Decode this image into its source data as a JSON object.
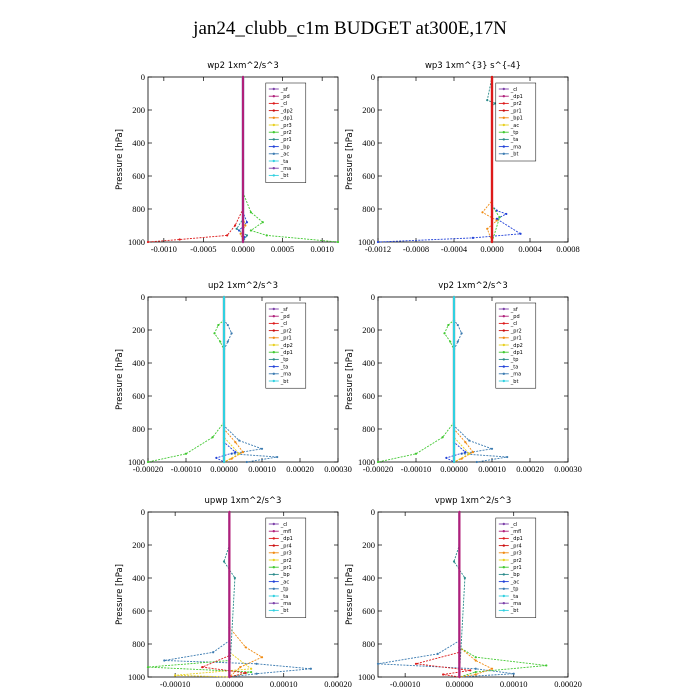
{
  "figure": {
    "title": "jan24_clubb_c1m  BUDGET at300E,17N"
  },
  "colors": {
    "purple": "#7b3fa8",
    "magenta": "#b0207a",
    "red": "#dd1a1a",
    "orange": "#f08a10",
    "yellow": "#e8d020",
    "green": "#40c830",
    "teal": "#2a8a8a",
    "blue": "#2040d8",
    "steel": "#3a7ab0",
    "cyan": "#30d0e0",
    "darkred": "#cc1010"
  },
  "chart_data": [
    {
      "type": "line",
      "title": "wp2   1xm^2/s^3",
      "ylabel": "Pressure [hPa]",
      "xlim": [
        -0.0012,
        0.0012
      ],
      "ylim": [
        1000,
        0
      ],
      "xticks": [
        -0.001,
        -0.0005,
        0,
        0.0005,
        0.001
      ],
      "xtick_labels": [
        "-0.0010",
        "-0.0005",
        "0.0000",
        "0.0005",
        "0.0010"
      ],
      "yticks": [
        0,
        200,
        400,
        600,
        800,
        1000
      ],
      "ytick_labels": [
        "0",
        "200",
        "400",
        "600",
        "800",
        "1000"
      ],
      "legend": [
        "_sf",
        "_pd",
        "_cl",
        "_dp2",
        "_dp1",
        "_pr3",
        "_pr2",
        "_pr1",
        "_bp",
        "_ac",
        "_ta",
        "_ma",
        "_bt"
      ],
      "series": [
        {
          "name": "_sf",
          "color": "purple",
          "x": [
            0,
            0,
            0
          ],
          "y": [
            0,
            800,
            1000
          ]
        },
        {
          "name": "_pr1",
          "color": "green",
          "x": [
            0,
            0,
            0.0001,
            0.00025,
            0.0001,
            0.0003,
            0.0012
          ],
          "y": [
            0,
            700,
            820,
            880,
            930,
            960,
            1000
          ]
        },
        {
          "name": "_dp1",
          "color": "red",
          "x": [
            0,
            0,
            -0.0001,
            -0.0002,
            -0.0008,
            -0.0012
          ],
          "y": [
            0,
            800,
            900,
            960,
            985,
            1000
          ]
        },
        {
          "name": "_ta",
          "color": "blue",
          "x": [
            0,
            0,
            5e-05,
            -5e-05,
            2e-05,
            0
          ],
          "y": [
            0,
            820,
            880,
            930,
            970,
            1000
          ]
        },
        {
          "name": "_ac",
          "color": "teal",
          "x": [
            0,
            0,
            -8e-05,
            5e-05,
            0
          ],
          "y": [
            0,
            860,
            920,
            960,
            1000
          ]
        },
        {
          "name": "_pr2",
          "color": "orange",
          "x": [
            0,
            0,
            3e-05,
            -3e-05,
            0
          ],
          "y": [
            0,
            850,
            900,
            950,
            1000
          ]
        },
        {
          "name": "_bt",
          "color": "cyan",
          "x": [
            0,
            0,
            0
          ],
          "y": [
            0,
            500,
            1000
          ]
        },
        {
          "name": "_cl",
          "color": "magenta",
          "x": [
            0,
            0,
            0
          ],
          "y": [
            0,
            500,
            1000
          ]
        }
      ]
    },
    {
      "type": "line",
      "title": "wp3   1xm^{3} s^{-4}",
      "ylabel": "Pressure [hPa]",
      "xlim": [
        -0.0012,
        0.0008
      ],
      "ylim": [
        1000,
        0
      ],
      "xticks": [
        -0.0012,
        -0.0008,
        -0.0004,
        0,
        0.0004,
        0.0008
      ],
      "xtick_labels": [
        "-0.0012",
        "-0.0008",
        "-0.0004",
        "0.0000",
        "0.0004",
        "0.0008"
      ],
      "yticks": [
        0,
        200,
        400,
        600,
        800,
        1000
      ],
      "ytick_labels": [
        "0",
        "200",
        "400",
        "600",
        "800",
        "1000"
      ],
      "legend": [
        "_cl",
        "_dp1",
        "_pr2",
        "_pr1",
        "_bp1",
        "_ac",
        "_tp",
        "_ta",
        "_ma",
        "_bt"
      ],
      "series": [
        {
          "name": "_ta",
          "color": "blue",
          "x": [
            0,
            0,
            5e-05,
            0.00015,
            5e-05,
            0.0003,
            -0.0002,
            -0.0012
          ],
          "y": [
            0,
            780,
            810,
            830,
            860,
            950,
            975,
            1000
          ]
        },
        {
          "name": "_pr2",
          "color": "orange",
          "x": [
            0,
            0,
            -0.0001,
            5e-05,
            -5e-05,
            0
          ],
          "y": [
            0,
            750,
            820,
            870,
            920,
            1000
          ]
        },
        {
          "name": "_tp",
          "color": "teal",
          "x": [
            0,
            -5e-05,
            3e-05,
            0,
            0
          ],
          "y": [
            0,
            140,
            160,
            180,
            1000
          ]
        },
        {
          "name": "_ac",
          "color": "green",
          "x": [
            0,
            0,
            8e-05,
            0
          ],
          "y": [
            0,
            780,
            850,
            1000
          ]
        },
        {
          "name": "_cl",
          "color": "darkred",
          "x": [
            0,
            0
          ],
          "y": [
            0,
            1000
          ]
        },
        {
          "name": "_dp1",
          "color": "red",
          "x": [
            0,
            0
          ],
          "y": [
            0,
            1000
          ]
        }
      ]
    },
    {
      "type": "line",
      "title": "up2   1xm^2/s^3",
      "ylabel": "Pressure [hPa]",
      "xlim": [
        -0.0002,
        0.0003
      ],
      "ylim": [
        1000,
        0
      ],
      "xticks": [
        -0.0002,
        -0.0001,
        0,
        0.0001,
        0.0002,
        0.0003
      ],
      "xtick_labels": [
        "-0.00020",
        "-0.00010",
        "0.00000",
        "0.00010",
        "0.00020",
        "0.00030"
      ],
      "yticks": [
        0,
        200,
        400,
        600,
        800,
        1000
      ],
      "ytick_labels": [
        "0",
        "200",
        "400",
        "600",
        "800",
        "1000"
      ],
      "legend": [
        "_sf",
        "_pd",
        "_cl",
        "_pr2",
        "_pr1",
        "_dp2",
        "_dp1",
        "_tp",
        "_ta",
        "_ma",
        "_bt"
      ],
      "series": [
        {
          "name": "_dp1",
          "color": "green",
          "x": [
            0,
            0,
            -1.5e-05,
            -2.5e-05,
            -1e-05,
            0,
            0,
            -3e-05,
            -0.0001,
            -0.0002
          ],
          "y": [
            0,
            140,
            170,
            220,
            270,
            320,
            760,
            850,
            950,
            1000
          ]
        },
        {
          "name": "_tp",
          "color": "steel",
          "x": [
            0,
            0,
            1e-05,
            2e-05,
            1e-05,
            0,
            0,
            4e-05,
            0.0001,
            2e-05,
            0.00014,
            6e-05
          ],
          "y": [
            0,
            140,
            170,
            220,
            270,
            320,
            780,
            870,
            920,
            950,
            970,
            1000
          ]
        },
        {
          "name": "_pr1",
          "color": "orange",
          "x": [
            0,
            0,
            3e-05,
            5e-05,
            2e-05,
            0
          ],
          "y": [
            0,
            800,
            880,
            940,
            980,
            1000
          ]
        },
        {
          "name": "_ta",
          "color": "blue",
          "x": [
            0,
            0,
            3e-05,
            -2e-05,
            0
          ],
          "y": [
            0,
            880,
            940,
            975,
            1000
          ]
        },
        {
          "name": "_pr2",
          "color": "yellow",
          "x": [
            0,
            0,
            4e-05,
            0
          ],
          "y": [
            0,
            850,
            950,
            1000
          ]
        },
        {
          "name": "_cl",
          "color": "darkred",
          "x": [
            0,
            0
          ],
          "y": [
            0,
            1000
          ]
        },
        {
          "name": "_bt",
          "color": "cyan",
          "x": [
            0,
            0
          ],
          "y": [
            0,
            1000
          ]
        }
      ]
    },
    {
      "type": "line",
      "title": "vp2   1xm^2/s^3",
      "ylabel": "Pressure [hPa]",
      "xlim": [
        -0.0002,
        0.0003
      ],
      "ylim": [
        1000,
        0
      ],
      "xticks": [
        -0.0002,
        -0.0001,
        0,
        0.0001,
        0.0002,
        0.0003
      ],
      "xtick_labels": [
        "-0.00020",
        "-0.00010",
        "0.00000",
        "0.00010",
        "0.00020",
        "0.00030"
      ],
      "yticks": [
        0,
        200,
        400,
        600,
        800,
        1000
      ],
      "ytick_labels": [
        "0",
        "200",
        "400",
        "600",
        "800",
        "1000"
      ],
      "legend": [
        "_sf",
        "_pd",
        "_cl",
        "_pr2",
        "_pr1",
        "_dp2",
        "_dp1",
        "_tp",
        "_ta",
        "_ma",
        "_bt"
      ],
      "series": [
        {
          "name": "_dp1",
          "color": "green",
          "x": [
            0,
            0,
            -1.5e-05,
            -2.5e-05,
            -1e-05,
            0,
            0,
            -3e-05,
            -0.0001,
            -0.0002
          ],
          "y": [
            0,
            140,
            170,
            220,
            270,
            320,
            760,
            850,
            950,
            1000
          ]
        },
        {
          "name": "_tp",
          "color": "steel",
          "x": [
            0,
            0,
            1e-05,
            2e-05,
            1e-05,
            0,
            0,
            4e-05,
            0.0001,
            2e-05,
            0.00014,
            6e-05
          ],
          "y": [
            0,
            140,
            170,
            220,
            270,
            320,
            780,
            870,
            920,
            950,
            970,
            1000
          ]
        },
        {
          "name": "_pr1",
          "color": "orange",
          "x": [
            0,
            0,
            3e-05,
            5e-05,
            2e-05,
            0
          ],
          "y": [
            0,
            800,
            880,
            940,
            980,
            1000
          ]
        },
        {
          "name": "_ta",
          "color": "blue",
          "x": [
            0,
            0,
            3e-05,
            -2e-05,
            0
          ],
          "y": [
            0,
            880,
            940,
            975,
            1000
          ]
        },
        {
          "name": "_pr2",
          "color": "yellow",
          "x": [
            0,
            0,
            4e-05,
            0
          ],
          "y": [
            0,
            850,
            950,
            1000
          ]
        },
        {
          "name": "_cl",
          "color": "darkred",
          "x": [
            0,
            0
          ],
          "y": [
            0,
            1000
          ]
        },
        {
          "name": "_bt",
          "color": "cyan",
          "x": [
            0,
            0
          ],
          "y": [
            0,
            1000
          ]
        }
      ]
    },
    {
      "type": "line",
      "title": "upwp   1xm^2/s^3",
      "ylabel": "Pressure [hPa]",
      "xlim": [
        -0.00015,
        0.0002
      ],
      "ylim": [
        1000,
        0
      ],
      "xticks": [
        -0.0001,
        0,
        0.0001,
        0.0002
      ],
      "xtick_labels": [
        "-0.00010",
        "0.00000",
        "0.00010",
        "0.00020"
      ],
      "yticks": [
        0,
        200,
        400,
        600,
        800,
        1000
      ],
      "ytick_labels": [
        "0",
        "200",
        "400",
        "600",
        "800",
        "1000"
      ],
      "legend": [
        "_cl",
        "_mfl",
        "_dp1",
        "_pr4",
        "_pr3",
        "_pr2",
        "_pr1",
        "_bp",
        "_ac",
        "_tp",
        "_ta",
        "_ma",
        "_bt"
      ],
      "series": [
        {
          "name": "_tp",
          "color": "steel",
          "x": [
            0,
            0,
            -3e-05,
            -0.00012,
            5e-05,
            0.00015,
            5e-05,
            0
          ],
          "y": [
            0,
            780,
            850,
            900,
            920,
            950,
            980,
            1000
          ]
        },
        {
          "name": "_pr1",
          "color": "orange",
          "x": [
            0,
            0,
            3e-05,
            6e-05,
            2e-05,
            0
          ],
          "y": [
            0,
            700,
            820,
            880,
            940,
            1000
          ]
        },
        {
          "name": "_pr3",
          "color": "yellow",
          "x": [
            0,
            0,
            4e-05,
            -0.0001,
            0
          ],
          "y": [
            0,
            850,
            950,
            990,
            1000
          ]
        },
        {
          "name": "_bp",
          "color": "green",
          "x": [
            0,
            0,
            -0.00015,
            4e-05,
            0
          ],
          "y": [
            0,
            900,
            940,
            970,
            1000
          ]
        },
        {
          "name": "_pr2",
          "color": "red",
          "x": [
            0,
            0,
            -5e-05,
            3e-05,
            0
          ],
          "y": [
            0,
            870,
            940,
            975,
            1000
          ]
        },
        {
          "name": "_ac",
          "color": "teal",
          "x": [
            0,
            0,
            -1e-05,
            1e-05,
            0
          ],
          "y": [
            0,
            200,
            300,
            400,
            1000
          ]
        },
        {
          "name": "_cl",
          "color": "purple",
          "x": [
            0,
            0
          ],
          "y": [
            0,
            1000
          ]
        },
        {
          "name": "_mfl",
          "color": "magenta",
          "x": [
            0,
            0
          ],
          "y": [
            0,
            1000
          ]
        }
      ]
    },
    {
      "type": "line",
      "title": "vpwp   1xm^2/s^3",
      "ylabel": "Pressure [hPa]",
      "xlim": [
        -0.00015,
        0.0002
      ],
      "ylim": [
        1000,
        0
      ],
      "xticks": [
        -0.0001,
        0,
        0.0001,
        0.0002
      ],
      "xtick_labels": [
        "-0.00010",
        "0.00000",
        "0.00010",
        "0.00020"
      ],
      "yticks": [
        0,
        200,
        400,
        600,
        800,
        1000
      ],
      "ytick_labels": [
        "0",
        "200",
        "400",
        "600",
        "800",
        "1000"
      ],
      "legend": [
        "_cl",
        "_mfl",
        "_dp1",
        "_pr4",
        "_pr3",
        "_pr2",
        "_pr1",
        "_bp",
        "_ac",
        "_tp",
        "_ta",
        "_ma",
        "_bt"
      ],
      "series": [
        {
          "name": "_tp",
          "color": "steel",
          "x": [
            0,
            0,
            -4e-05,
            -0.00015,
            3e-05,
            0.0001,
            0
          ],
          "y": [
            0,
            780,
            860,
            920,
            950,
            980,
            1000
          ]
        },
        {
          "name": "_bp",
          "color": "green",
          "x": [
            0,
            0,
            3e-05,
            0.00016,
            3e-05,
            0
          ],
          "y": [
            0,
            820,
            880,
            930,
            970,
            1000
          ]
        },
        {
          "name": "_pr1",
          "color": "orange",
          "x": [
            0,
            0,
            3e-05,
            6e-05,
            3e-05,
            0
          ],
          "y": [
            0,
            820,
            900,
            950,
            985,
            1000
          ]
        },
        {
          "name": "_pr2",
          "color": "red",
          "x": [
            0,
            0,
            -8e-05,
            2e-05,
            -3e-05,
            0
          ],
          "y": [
            0,
            850,
            920,
            960,
            985,
            1000
          ]
        },
        {
          "name": "_ac",
          "color": "teal",
          "x": [
            0,
            0,
            -1e-05,
            1e-05,
            0
          ],
          "y": [
            0,
            200,
            300,
            400,
            1000
          ]
        },
        {
          "name": "_cl",
          "color": "purple",
          "x": [
            0,
            0
          ],
          "y": [
            0,
            1000
          ]
        },
        {
          "name": "_mfl",
          "color": "magenta",
          "x": [
            0,
            0
          ],
          "y": [
            0,
            1000
          ]
        }
      ]
    }
  ]
}
